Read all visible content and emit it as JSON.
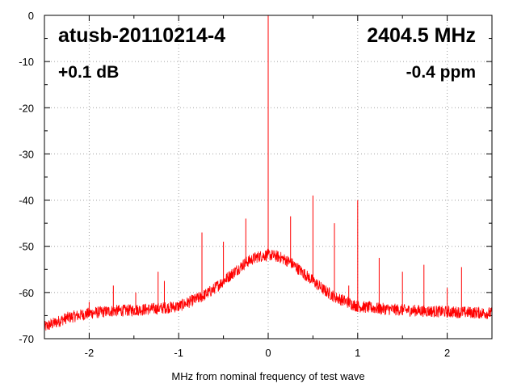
{
  "chart_data": {
    "type": "line",
    "title": "",
    "xlabel": "MHz from nominal frequency of test wave",
    "ylabel": "",
    "xlim": [
      -2.5,
      2.5
    ],
    "ylim": [
      -70,
      0
    ],
    "xticks": [
      -2,
      -1,
      0,
      1,
      2
    ],
    "yticks": [
      0,
      -10,
      -20,
      -30,
      -40,
      -50,
      -60,
      -70
    ],
    "x_minor_step": 0.5,
    "y_minor_step": 5,
    "grid": true,
    "line_color": "#ff0000",
    "annotations": {
      "device": "atusb-20110214-4",
      "frequency": "2404.5 MHz",
      "gain": "+0.1 dB",
      "offset": "-0.4 ppm"
    },
    "series": [
      {
        "x": [
          -2.5,
          -2.25,
          -2.0,
          -1.75,
          -1.5,
          -1.25,
          -1.0,
          -0.875,
          -0.75,
          -0.625,
          -0.5,
          -0.375,
          -0.25,
          -0.125,
          0.0,
          0.125,
          0.25,
          0.375,
          0.5,
          0.625,
          0.75,
          0.875,
          1.0,
          1.25,
          1.5,
          1.75,
          2.0,
          2.25,
          2.5
        ],
        "values": [
          -67.5,
          -65.5,
          -64.5,
          -64.0,
          -63.8,
          -63.5,
          -63.0,
          -62.0,
          -61.0,
          -59.5,
          -57.5,
          -55.5,
          -53.5,
          -52.3,
          -51.8,
          -52.3,
          -53.5,
          -55.5,
          -57.5,
          -59.5,
          -61.0,
          -62.0,
          -63.0,
          -63.5,
          -63.8,
          -64.0,
          -64.2,
          -64.3,
          -64.5
        ]
      }
    ],
    "spurs": [
      {
        "x": -2.0,
        "y": -62
      },
      {
        "x": -1.73,
        "y": -58.5
      },
      {
        "x": -1.48,
        "y": -60
      },
      {
        "x": -1.23,
        "y": -55.5
      },
      {
        "x": -1.16,
        "y": -57.5
      },
      {
        "x": -0.74,
        "y": -47
      },
      {
        "x": -0.5,
        "y": -49
      },
      {
        "x": -0.25,
        "y": -44
      },
      {
        "x": 0.0,
        "y": 0
      },
      {
        "x": 0.25,
        "y": -43.5
      },
      {
        "x": 0.5,
        "y": -39
      },
      {
        "x": 0.74,
        "y": -45
      },
      {
        "x": 0.9,
        "y": -58.5
      },
      {
        "x": 1.0,
        "y": -40
      },
      {
        "x": 1.24,
        "y": -52.5
      },
      {
        "x": 1.5,
        "y": -55.5
      },
      {
        "x": 1.74,
        "y": -54
      },
      {
        "x": 2.0,
        "y": -59
      },
      {
        "x": 2.16,
        "y": -54.5
      }
    ]
  }
}
